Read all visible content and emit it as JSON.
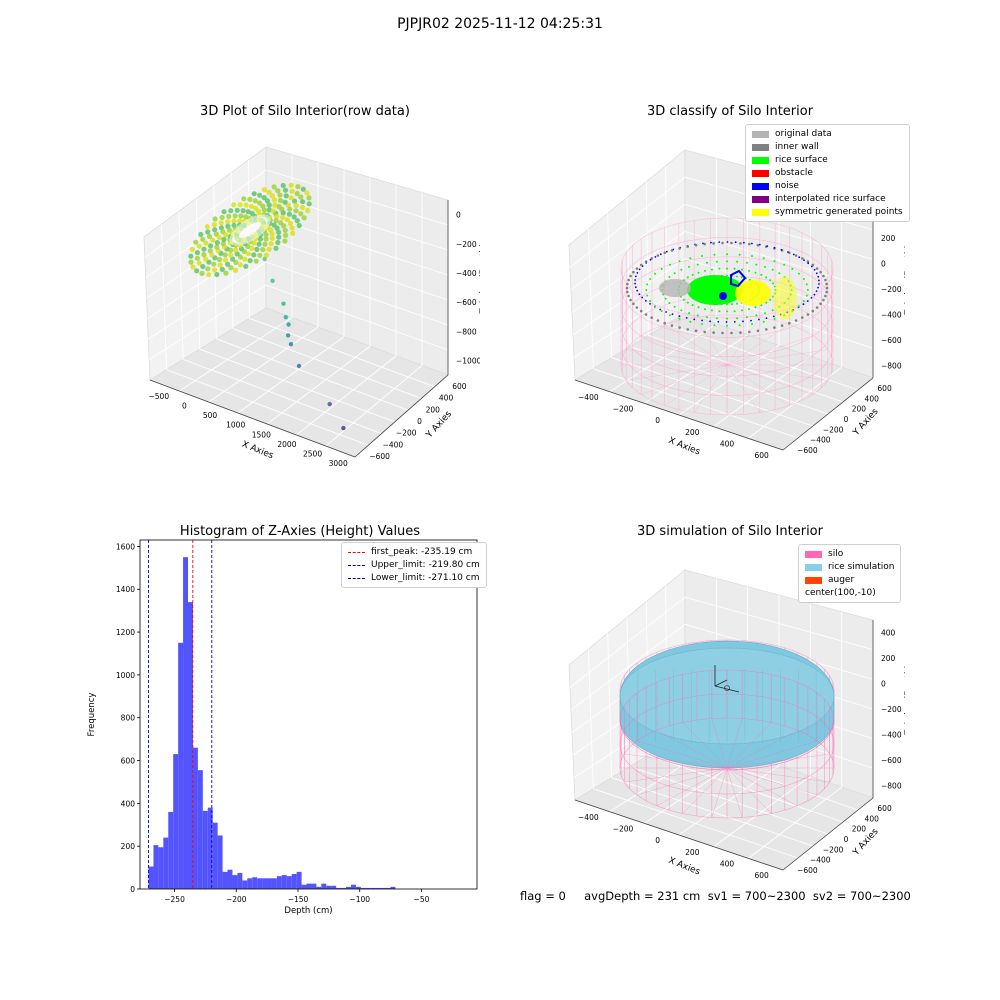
{
  "suptitle": "PJPJR02 2025-11-12 04:25:31",
  "footer": "flag = 0     avgDepth = 231 cm  sv1 = 700~2300  sv2 = 700~2300",
  "colors": {
    "rice_gradient": [
      "#d9e21c",
      "#9fd43a",
      "#62c46a"
    ],
    "hist_bar": "#4b4bff",
    "first_peak": "#ff0000",
    "limits": "#0000cc",
    "silo": "#ff69b4",
    "rice_sim": "#7fc8e0",
    "auger": "#ff4500"
  },
  "chart_data": [
    {
      "type": "scatter",
      "title": "3D Plot of Silo Interior(row data)",
      "xlabel": "X Axies",
      "ylabel": "Y Axies",
      "zlabel": "Z Axies (Depth)",
      "x_ticks": [
        "−500",
        "0",
        "500",
        "1000",
        "1500",
        "2000",
        "2500",
        "3000"
      ],
      "y_ticks": [
        "600",
        "400",
        "200",
        "0",
        "−200",
        "−400",
        "−600"
      ],
      "z_ticks": [
        "0",
        "−200",
        "−400",
        "−600",
        "−800",
        "−1000"
      ],
      "xlim": [
        -600,
        3000
      ],
      "ylim": [
        -600,
        600
      ],
      "zlim": [
        -1100,
        0
      ],
      "outliers": [
        {
          "x": 700,
          "y": 0,
          "z": -300
        },
        {
          "x": 900,
          "y": -50,
          "z": -400
        },
        {
          "x": 1150,
          "y": -100,
          "z": -500
        },
        {
          "x": 1250,
          "y": -150,
          "z": -560
        },
        {
          "x": 1300,
          "y": -150,
          "z": -600
        },
        {
          "x": 1350,
          "y": -200,
          "z": -650
        },
        {
          "x": 1400,
          "y": -200,
          "z": -700
        },
        {
          "x": 1600,
          "y": -250,
          "z": -800
        },
        {
          "x": 2200,
          "y": -300,
          "z": -950
        },
        {
          "x": 2500,
          "y": -350,
          "z": -1050
        }
      ]
    },
    {
      "type": "scatter",
      "title": "3D classify of Silo Interior",
      "xlabel": "X Axies",
      "ylabel": "Y Axies",
      "zlabel": "Z Axies (Depth)",
      "x_ticks": [
        "−400",
        "−200",
        "0",
        "200",
        "400",
        "600"
      ],
      "y_ticks": [
        "600",
        "400",
        "200",
        "0",
        "−200",
        "−400",
        "−600"
      ],
      "z_ticks": [
        "400",
        "200",
        "0",
        "−200",
        "−400",
        "−600",
        "−800"
      ],
      "legend": [
        {
          "label": "original data",
          "color": "#b4b4b4"
        },
        {
          "label": "inner wall",
          "color": "#808080"
        },
        {
          "label": "rice surface",
          "color": "#00ff00"
        },
        {
          "label": "obstacle",
          "color": "#ff0000"
        },
        {
          "label": "noise",
          "color": "#0000ff"
        },
        {
          "label": "interpolated rice surface",
          "color": "#800080"
        },
        {
          "label": "symmetric generated points",
          "color": "#ffff00"
        }
      ]
    },
    {
      "type": "bar",
      "title": "Histogram of Z-Axies (Height) Values",
      "xlabel": "Depth (cm)",
      "ylabel": "Frequency",
      "xlim": [
        -278,
        -5
      ],
      "ylim": [
        0,
        1630
      ],
      "x_ticks": [
        -250,
        -200,
        -150,
        -100,
        -50
      ],
      "x_tick_labels": [
        "−250",
        "−200",
        "−150",
        "−100",
        "−50"
      ],
      "y_ticks": [
        0,
        200,
        400,
        600,
        800,
        1000,
        1200,
        1400,
        1600
      ],
      "y_tick_labels": [
        "0",
        "200",
        "400",
        "600",
        "800",
        "1000",
        "1200",
        "1400",
        "1600"
      ],
      "bin_start": -271.1,
      "bin_width": 4.0,
      "values": [
        105,
        205,
        195,
        240,
        360,
        630,
        1150,
        1550,
        1340,
        660,
        555,
        365,
        380,
        310,
        250,
        80,
        90,
        65,
        75,
        40,
        50,
        55,
        50,
        50,
        50,
        50,
        60,
        65,
        60,
        70,
        80,
        20,
        25,
        25,
        10,
        25,
        15,
        15,
        5,
        5,
        10,
        20,
        10,
        5,
        5,
        5,
        5,
        5,
        5,
        10
      ],
      "lines": [
        {
          "label": "first_peak: -235.19 cm",
          "x": -235.19,
          "color": "#ff0000"
        },
        {
          "label": "Upper_limit: -219.80 cm",
          "x": -219.8,
          "color": "#0000cc"
        },
        {
          "label": "Lower_limit: -271.10 cm",
          "x": -271.1,
          "color": "#0000cc"
        }
      ]
    },
    {
      "type": "scatter",
      "title": "3D simulation of Silo Interior",
      "xlabel": "X Axies",
      "ylabel": "Y Axies",
      "zlabel": "Z Axies (Depth)",
      "x_ticks": [
        "−400",
        "−200",
        "0",
        "200",
        "400",
        "600"
      ],
      "y_ticks": [
        "600",
        "400",
        "200",
        "0",
        "−200",
        "−400",
        "−600"
      ],
      "z_ticks": [
        "400",
        "200",
        "0",
        "−200",
        "−400",
        "−600",
        "−800"
      ],
      "legend": [
        {
          "label": "silo",
          "color": "#ff69b4"
        },
        {
          "label": "rice simulation",
          "color": "#87ceeb"
        },
        {
          "label": "auger",
          "color": "#ff4500"
        },
        {
          "label": "center(100,-10)",
          "color": ""
        }
      ]
    }
  ]
}
